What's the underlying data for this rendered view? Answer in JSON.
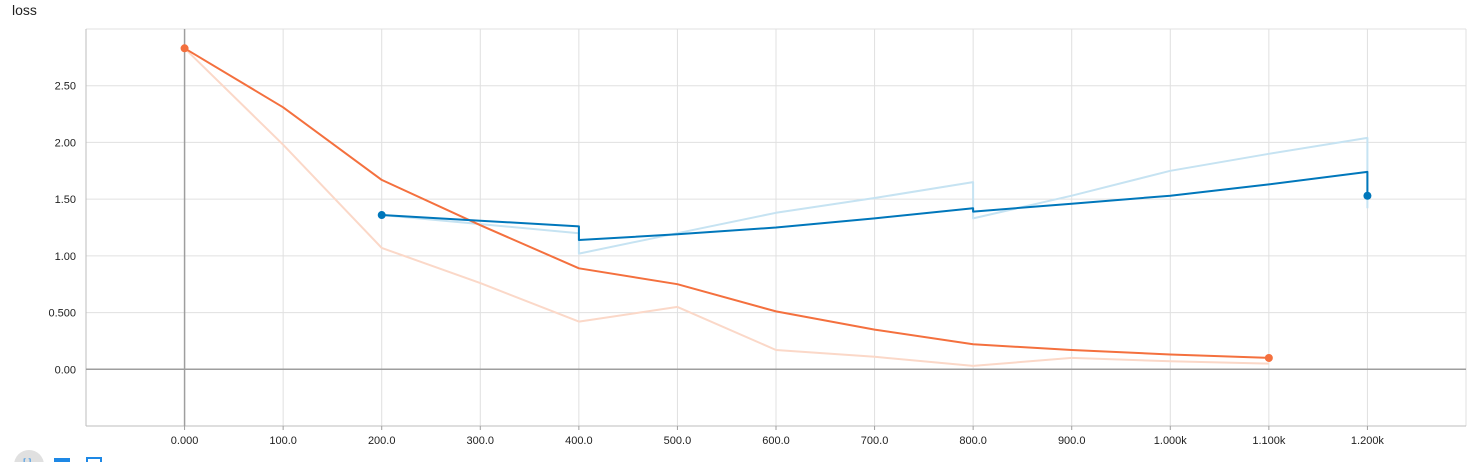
{
  "chart_data": {
    "type": "line",
    "title": "loss",
    "xlabel": "",
    "ylabel": "",
    "xlim": [
      -100,
      1300
    ],
    "ylim": [
      -0.5,
      3.0
    ],
    "x_ticks": [
      {
        "value": 0,
        "label": "0.000"
      },
      {
        "value": 100,
        "label": "100.0"
      },
      {
        "value": 200,
        "label": "200.0"
      },
      {
        "value": 300,
        "label": "300.0"
      },
      {
        "value": 400,
        "label": "400.0"
      },
      {
        "value": 500,
        "label": "500.0"
      },
      {
        "value": 600,
        "label": "600.0"
      },
      {
        "value": 700,
        "label": "700.0"
      },
      {
        "value": 800,
        "label": "800.0"
      },
      {
        "value": 900,
        "label": "900.0"
      },
      {
        "value": 1000,
        "label": "1.000k"
      },
      {
        "value": 1100,
        "label": "1.100k"
      },
      {
        "value": 1200,
        "label": "1.200k"
      }
    ],
    "y_ticks": [
      {
        "value": 0,
        "label": "0.00"
      },
      {
        "value": 0.5,
        "label": "0.500"
      },
      {
        "value": 1.0,
        "label": "1.00"
      },
      {
        "value": 1.5,
        "label": "1.50"
      },
      {
        "value": 2.0,
        "label": "2.00"
      },
      {
        "value": 2.5,
        "label": "2.50"
      }
    ],
    "grid": true,
    "series": [
      {
        "color": "#f4703e",
        "raw_color": "#fbd8c8",
        "raw": [
          [
            0,
            2.83
          ],
          [
            100,
            1.98
          ],
          [
            200,
            1.07
          ],
          [
            300,
            0.76
          ],
          [
            400,
            0.42
          ],
          [
            500,
            0.55
          ],
          [
            600,
            0.17
          ],
          [
            700,
            0.11
          ],
          [
            800,
            0.03
          ],
          [
            900,
            0.1
          ],
          [
            1000,
            0.07
          ],
          [
            1100,
            0.05
          ]
        ],
        "smoothed": [
          [
            0,
            2.83
          ],
          [
            100,
            2.31
          ],
          [
            200,
            1.67
          ],
          [
            300,
            1.27
          ],
          [
            400,
            0.89
          ],
          [
            500,
            0.75
          ],
          [
            600,
            0.51
          ],
          [
            700,
            0.35
          ],
          [
            800,
            0.22
          ],
          [
            900,
            0.17
          ],
          [
            1000,
            0.13
          ],
          [
            1100,
            0.1
          ]
        ],
        "last_point": [
          1100,
          0.1
        ]
      },
      {
        "color": "#0077bb",
        "raw_color": "#c6e3f2",
        "raw": [
          [
            200,
            1.36
          ],
          [
            300,
            1.28
          ],
          [
            400,
            1.2
          ],
          [
            400,
            1.02
          ],
          [
            500,
            1.2
          ],
          [
            600,
            1.38
          ],
          [
            700,
            1.51
          ],
          [
            800,
            1.65
          ],
          [
            800,
            1.33
          ],
          [
            900,
            1.53
          ],
          [
            1000,
            1.75
          ],
          [
            1100,
            1.9
          ],
          [
            1200,
            2.04
          ],
          [
            1200,
            1.42
          ]
        ],
        "smoothed": [
          [
            200,
            1.36
          ],
          [
            300,
            1.31
          ],
          [
            400,
            1.26
          ],
          [
            400,
            1.14
          ],
          [
            500,
            1.19
          ],
          [
            600,
            1.25
          ],
          [
            700,
            1.33
          ],
          [
            800,
            1.42
          ],
          [
            800,
            1.39
          ],
          [
            900,
            1.46
          ],
          [
            1000,
            1.53
          ],
          [
            1100,
            1.63
          ],
          [
            1200,
            1.74
          ],
          [
            1200,
            1.53
          ]
        ],
        "first_point": [
          200,
          1.36
        ],
        "last_point": [
          1200,
          1.53
        ]
      }
    ]
  }
}
